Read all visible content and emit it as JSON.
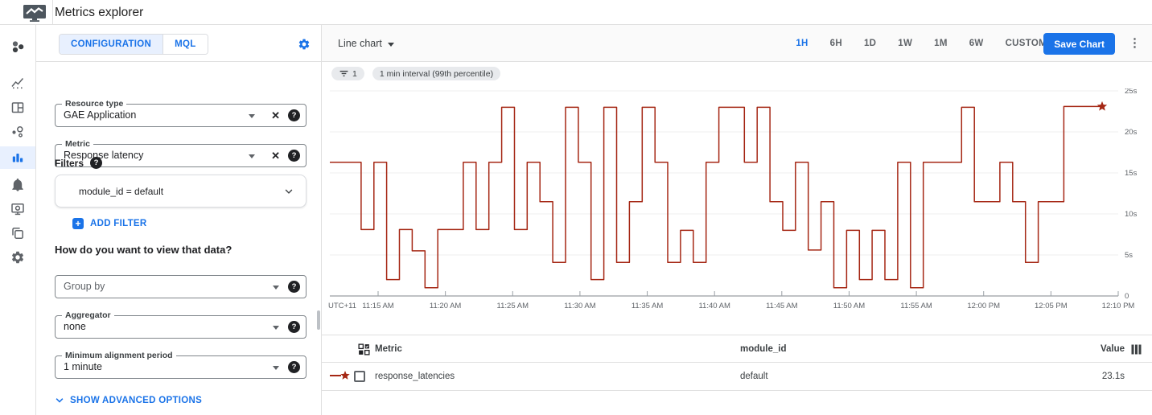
{
  "header": {
    "title": "Metrics explorer"
  },
  "sidebar": {
    "icons": [
      "monitoring-overview",
      "metrics",
      "dashboards",
      "services",
      "metrics-explorer",
      "alerting",
      "uptime-checks",
      "groups",
      "settings"
    ],
    "active": "metrics-explorer"
  },
  "config": {
    "tabs": [
      {
        "label": "CONFIGURATION",
        "active": true
      },
      {
        "label": "MQL",
        "active": false
      }
    ],
    "resource_type": {
      "label": "Resource type",
      "value": "GAE Application"
    },
    "metric": {
      "label": "Metric",
      "value": "Response latency"
    },
    "filters_label": "Filters",
    "filter_expression": "module_id = default",
    "add_filter_label": "ADD FILTER",
    "question": "How do you want to view that data?",
    "group_by_placeholder": "Group by",
    "aggregator": {
      "label": "Aggregator",
      "value": "none"
    },
    "alignment": {
      "label": "Minimum alignment period",
      "value": "1 minute"
    },
    "advanced_label": "SHOW ADVANCED OPTIONS"
  },
  "toolbar": {
    "chart_type": "Line chart",
    "ranges": [
      "1H",
      "6H",
      "1D",
      "1W",
      "1M",
      "6W",
      "CUSTOM"
    ],
    "active_range": "1H",
    "save_label": "Save Chart"
  },
  "chips": {
    "filter_count": "1",
    "interval_label": "1 min interval (99th percentile)"
  },
  "chart_data": {
    "type": "line",
    "style": "step",
    "series": [
      {
        "name": "response_latencies",
        "module_id": "default",
        "color": "#a52714",
        "end_marker": "star",
        "start_time": "11:11 AM",
        "interval_minutes": 1,
        "values": [
          16.3,
          16.3,
          8.1,
          16.3,
          2,
          8.1,
          5.5,
          1,
          8.1,
          8.1,
          16.3,
          8.1,
          16.3,
          23,
          8.1,
          16.3,
          11.5,
          4.1,
          23,
          16.3,
          2,
          23,
          4.1,
          11.5,
          23,
          16.3,
          4.1,
          8,
          4.1,
          16.3,
          23,
          23,
          16.3,
          23,
          11.5,
          8,
          16.3,
          5.6,
          11.5,
          1,
          8,
          2,
          8,
          2,
          16.3,
          1,
          16.3,
          16.3,
          16.3,
          23,
          11.5,
          11.5,
          16.3,
          11.5,
          4.1,
          11.5,
          11.5,
          23.1,
          23.1,
          23.1
        ]
      }
    ],
    "x_tick_labels": [
      "UTC+11",
      "11:15 AM",
      "11:20 AM",
      "11:25 AM",
      "11:30 AM",
      "11:35 AM",
      "11:40 AM",
      "11:45 AM",
      "11:50 AM",
      "11:55 AM",
      "12:00 PM",
      "12:05 PM",
      "12:10 PM"
    ],
    "y_ticks": [
      {
        "label": "25s",
        "value": 25
      },
      {
        "label": "20s",
        "value": 20
      },
      {
        "label": "15s",
        "value": 15
      },
      {
        "label": "10s",
        "value": 10
      },
      {
        "label": "5s",
        "value": 5
      },
      {
        "label": "0",
        "value": 0
      }
    ],
    "ylim": [
      0,
      25
    ],
    "grid": true,
    "latest_value": "23.1s"
  },
  "table": {
    "headers": [
      "Metric",
      "module_id",
      "Value"
    ],
    "rows": [
      {
        "metric": "response_latencies",
        "module_id": "default",
        "value": "23.1s"
      }
    ]
  },
  "colors": {
    "accent": "#1a73e8",
    "series": "#a52714",
    "active_tab_bg": "#e8f0fe"
  }
}
